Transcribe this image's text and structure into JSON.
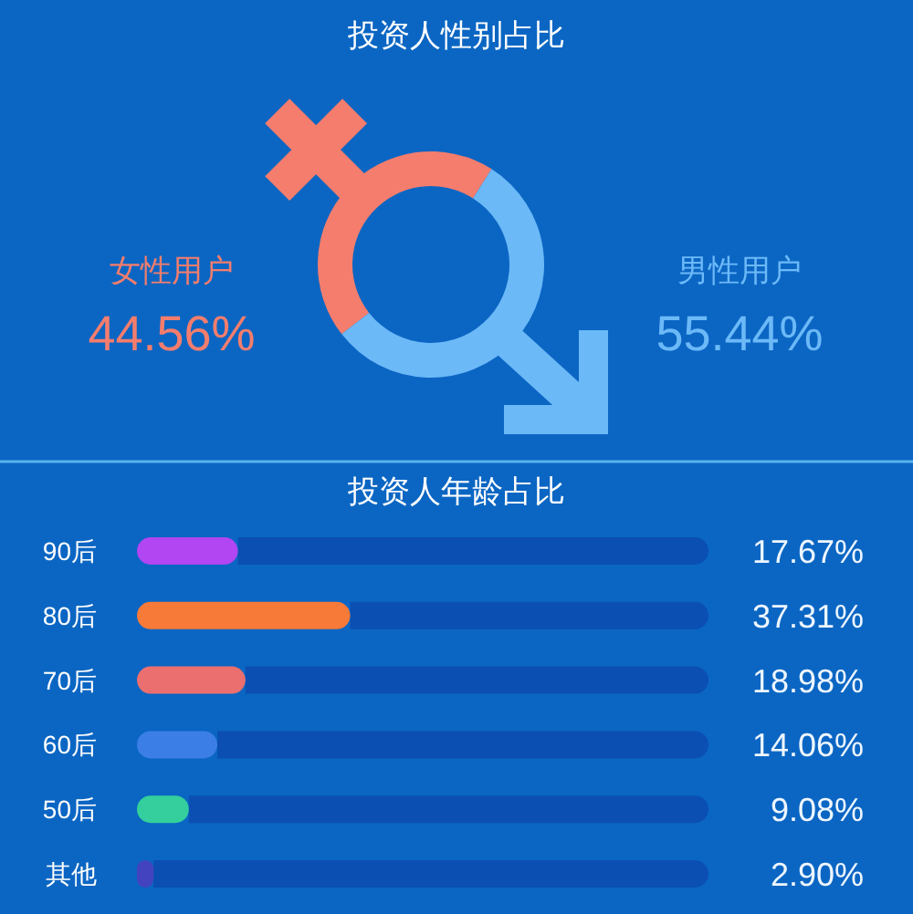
{
  "chart_data": [
    {
      "type": "donut",
      "title": "投资人性别占比",
      "categories": [
        "女性用户",
        "男性用户"
      ],
      "values": [
        44.56,
        55.44
      ],
      "colors": [
        "#f47d6d",
        "#6cb9f8"
      ],
      "value_labels": [
        "44.56%",
        "55.44%"
      ]
    },
    {
      "type": "bar",
      "orientation": "horizontal",
      "stacked": true,
      "title": "投资人年龄占比",
      "categories": [
        "90后",
        "80后",
        "70后",
        "60后",
        "50后",
        "其他"
      ],
      "series": [
        {
          "colors": [
            "#b146f2",
            "#f77a38",
            "#ec6f6f",
            "#3b7fe6",
            "#34cf9c",
            "#4343bf"
          ],
          "values": [
            17.67,
            37.31,
            18.98,
            14.06,
            9.08,
            2.9
          ],
          "value_labels": [
            "17.67%",
            "37.31%",
            "18.98%",
            "14.06%",
            "9.08%",
            "2.90%"
          ]
        },
        {
          "color": "#0b4fb2",
          "values": [
            82.33,
            62.69,
            81.02,
            85.94,
            90.92,
            97.1
          ]
        }
      ],
      "xlim": [
        0,
        100
      ],
      "tick_labels": "y"
    }
  ]
}
